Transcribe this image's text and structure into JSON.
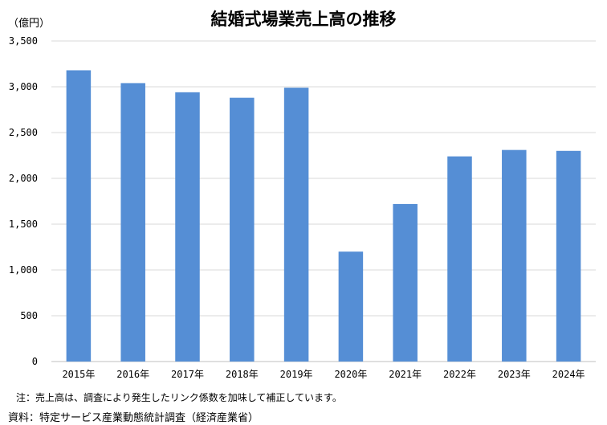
{
  "chart_data": {
    "type": "bar",
    "title": "結婚式場業売上高の推移",
    "ylabel": "（億円）",
    "xlabel": "",
    "categories": [
      "2015年",
      "2016年",
      "2017年",
      "2018年",
      "2019年",
      "2020年",
      "2021年",
      "2022年",
      "2023年",
      "2024年"
    ],
    "values": [
      3180,
      3040,
      2940,
      2880,
      2990,
      1200,
      1720,
      2240,
      2310,
      2300
    ],
    "ylim": [
      0,
      3500
    ],
    "yticks": [
      0,
      500,
      1000,
      1500,
      2000,
      2500,
      3000,
      3500
    ],
    "ytick_labels": [
      "0",
      "500",
      "1,000",
      "1,500",
      "2,000",
      "2,500",
      "3,000",
      "3,500"
    ],
    "grid": true,
    "bar_color": "#558ED5",
    "grid_color": "#D9D9D9"
  },
  "footnote": "注：売上高は、調査により発生したリンク係数を加味して補正しています。",
  "source": "資料：特定サービス産業動態統計調査（経済産業省）"
}
